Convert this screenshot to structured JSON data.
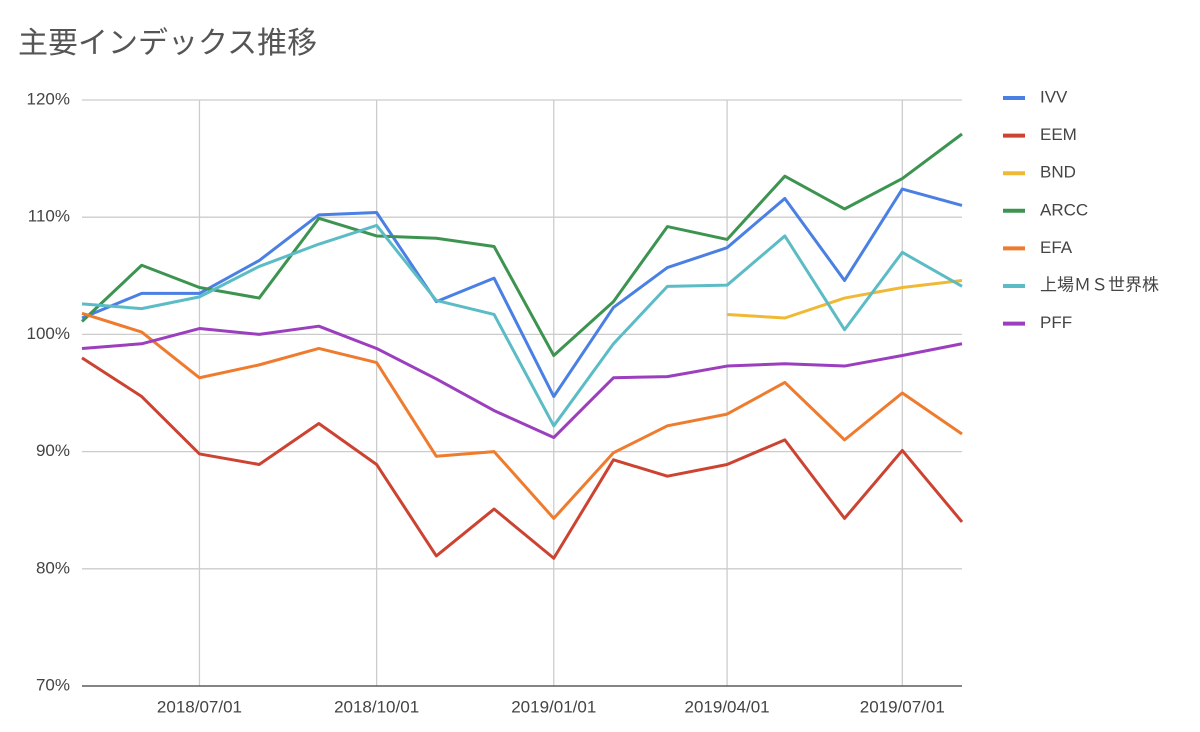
{
  "chart_data": {
    "type": "line",
    "title": "主要インデックス推移",
    "x": [
      "2018/05/01",
      "2018/06/01",
      "2018/07/01",
      "2018/08/01",
      "2018/09/01",
      "2018/10/01",
      "2018/11/01",
      "2018/12/01",
      "2019/01/01",
      "2019/02/01",
      "2019/03/01",
      "2019/04/01",
      "2019/05/01",
      "2019/06/01",
      "2019/07/01",
      "2019/08/01"
    ],
    "xlim": [
      "2018/05/01",
      "2019/08/01"
    ],
    "xticks": [
      "2018/07/01",
      "2018/10/01",
      "2019/01/01",
      "2019/04/01",
      "2019/07/01"
    ],
    "ylim": [
      70,
      120
    ],
    "yticks": [
      {
        "value": 70,
        "label": "70%"
      },
      {
        "value": 80,
        "label": "80%"
      },
      {
        "value": 90,
        "label": "90%"
      },
      {
        "value": 100,
        "label": "100%"
      },
      {
        "value": 110,
        "label": "110%"
      },
      {
        "value": 120,
        "label": "120%"
      }
    ],
    "grid": true,
    "legend": "right",
    "series": [
      {
        "name": "IVV",
        "color": "#4a7fe3",
        "values": [
          101.4,
          103.5,
          103.5,
          106.3,
          110.2,
          110.4,
          102.8,
          104.8,
          94.7,
          102.3,
          105.7,
          107.4,
          111.6,
          104.6,
          112.4,
          111.0
        ]
      },
      {
        "name": "EEM",
        "color": "#cc4332",
        "values": [
          98.0,
          94.7,
          89.8,
          88.9,
          92.4,
          88.9,
          81.1,
          85.1,
          80.9,
          89.3,
          87.9,
          88.9,
          91.0,
          84.3,
          90.1,
          84.0
        ]
      },
      {
        "name": "BND",
        "color": "#efb935",
        "values": [
          null,
          null,
          null,
          null,
          null,
          null,
          null,
          null,
          null,
          null,
          null,
          101.7,
          101.4,
          103.1,
          104.0,
          104.6
        ]
      },
      {
        "name": "ARCC",
        "color": "#3d9450",
        "values": [
          101.1,
          105.9,
          104.0,
          103.1,
          109.9,
          108.4,
          108.2,
          107.5,
          98.2,
          102.8,
          109.2,
          108.1,
          113.5,
          110.7,
          113.3,
          117.1
        ]
      },
      {
        "name": "EFA",
        "color": "#ef7b2e",
        "values": [
          101.8,
          100.2,
          96.3,
          97.4,
          98.8,
          97.6,
          89.6,
          90.0,
          84.3,
          89.9,
          92.2,
          93.2,
          95.9,
          91.0,
          95.0,
          91.5
        ]
      },
      {
        "name": "上場ＭＳ世界株",
        "color": "#5bbcc6",
        "values": [
          102.6,
          102.2,
          103.2,
          105.8,
          107.7,
          109.3,
          102.9,
          101.7,
          92.2,
          99.2,
          104.1,
          104.2,
          108.4,
          100.4,
          107.0,
          104.1
        ]
      },
      {
        "name": "PFF",
        "color": "#9b3fbf",
        "values": [
          98.8,
          99.2,
          100.5,
          100.0,
          100.7,
          98.8,
          96.2,
          93.5,
          91.2,
          96.3,
          96.4,
          97.3,
          97.5,
          97.3,
          98.2,
          99.2
        ]
      }
    ]
  }
}
